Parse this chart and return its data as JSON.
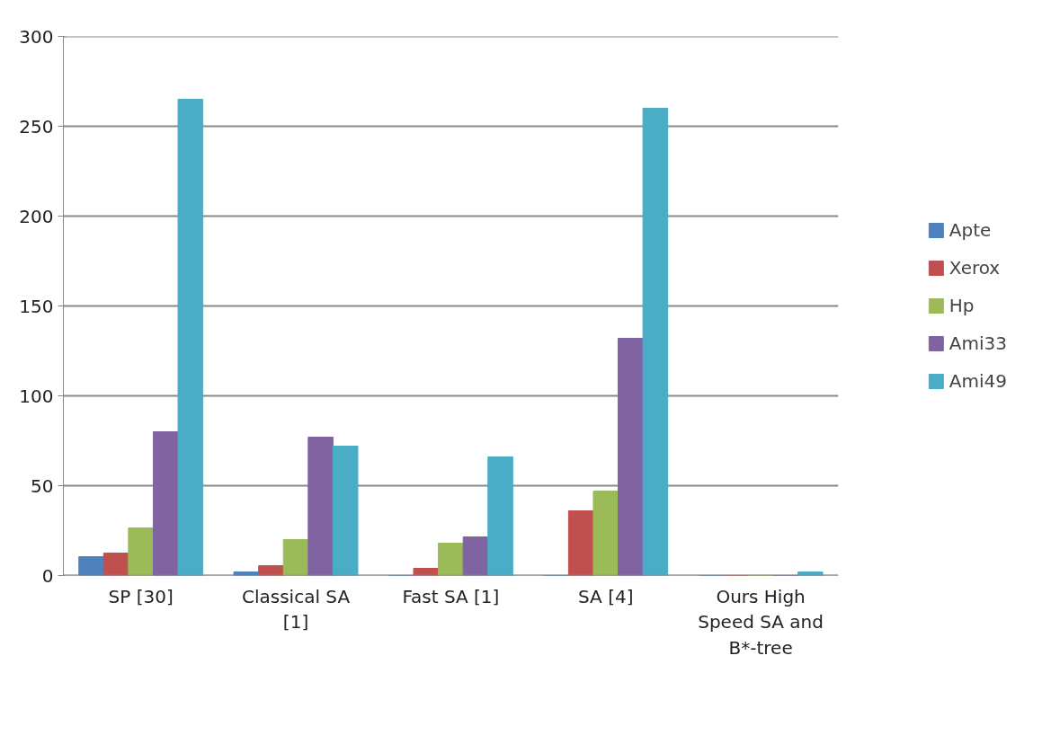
{
  "chart_data": {
    "type": "bar",
    "categories": [
      "SP [30]",
      "Classical SA [1]",
      "Fast SA [1]",
      "SA [4]",
      "Ours High Speed SA and B*-tree"
    ],
    "series": [
      {
        "name": "Apte",
        "color": "#4f81bd",
        "values": [
          10.5,
          2,
          0,
          0,
          0
        ]
      },
      {
        "name": "Xerox",
        "color": "#c0504d",
        "values": [
          12.5,
          5.5,
          4,
          36,
          0
        ]
      },
      {
        "name": "Hp",
        "color": "#9bbb59",
        "values": [
          26.5,
          20,
          18,
          47,
          0
        ]
      },
      {
        "name": "Ami33",
        "color": "#8064a2",
        "values": [
          80,
          77,
          21.5,
          132,
          0
        ]
      },
      {
        "name": "Ami49",
        "color": "#4bacc6",
        "values": [
          265,
          72,
          66,
          260,
          2
        ]
      }
    ],
    "ylim": [
      0,
      300
    ],
    "yticks": [
      0,
      50,
      100,
      150,
      200,
      250,
      300
    ],
    "grid": "y",
    "legend": "right"
  }
}
